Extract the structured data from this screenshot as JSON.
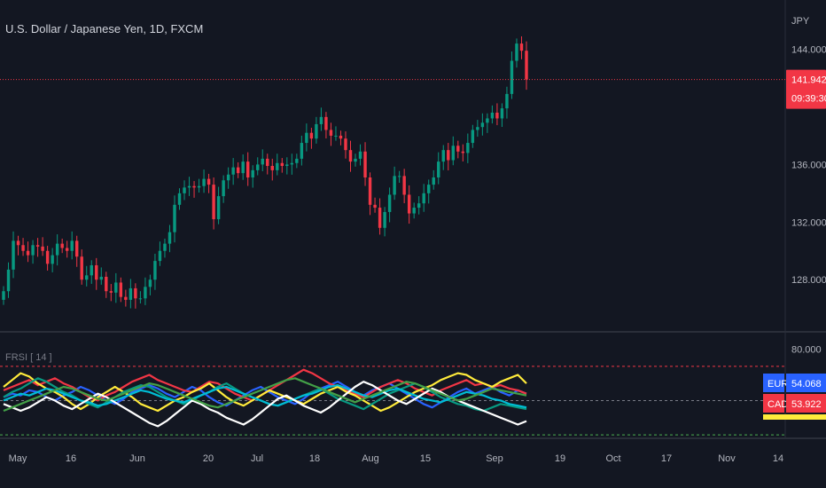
{
  "chart_data": [
    {
      "type": "candlestick",
      "title": "U.S. Dollar / Japanese Yen, 1D, FXCM",
      "y_axis_unit": "JPY",
      "y_ticks": [
        "144.000",
        "136.000",
        "132.000",
        "128.000"
      ],
      "y_tick_values": [
        144,
        136,
        132,
        128
      ],
      "ylim": [
        124.5,
        146.5
      ],
      "last_price": "141.942",
      "countdown": "09:39:30",
      "x_ticks": [
        "May",
        "16",
        "Jun",
        "20",
        "Jul",
        "18",
        "Aug",
        "15",
        "Sep",
        "19",
        "Oct",
        "17",
        "Nov",
        "14"
      ],
      "closes": [
        127.2,
        128.7,
        130.7,
        130.4,
        130.0,
        129.7,
        130.4,
        130.3,
        130.0,
        129.1,
        129.7,
        130.5,
        130.2,
        130.0,
        130.7,
        129.6,
        128.0,
        128.3,
        129.0,
        128.0,
        128.2,
        127.2,
        127.1,
        127.8,
        126.8,
        126.6,
        127.4,
        126.7,
        126.7,
        127.5,
        128.0,
        129.3,
        130.0,
        130.5,
        131.3,
        133.2,
        134.0,
        134.4,
        134.5,
        134.4,
        134.5,
        135.0,
        134.6,
        132.2,
        133.8,
        134.9,
        135.3,
        135.8,
        135.4,
        136.2,
        135.1,
        135.6,
        136.0,
        136.4,
        135.9,
        135.6,
        136.1,
        135.9,
        136.0,
        136.1,
        136.4,
        137.5,
        138.2,
        137.8,
        138.8,
        139.3,
        138.4,
        138.0,
        138.0,
        137.8,
        137.0,
        136.2,
        136.4,
        136.9,
        135.1,
        133.2,
        133.0,
        131.6,
        132.7,
        133.9,
        135.2,
        135.2,
        133.9,
        132.6,
        133.0,
        133.3,
        134.0,
        134.6,
        135.1,
        136.2,
        137.0,
        136.3,
        137.3,
        136.9,
        136.8,
        137.5,
        138.4,
        138.6,
        138.9,
        139.2,
        139.6,
        139.2,
        139.9,
        140.9,
        143.2,
        144.4,
        143.9,
        141.9
      ]
    },
    {
      "type": "line",
      "title": "FRSI [ 14 ]",
      "ylim": [
        29,
        87
      ],
      "y_ticks": [
        "80.000"
      ],
      "y_tick_values": [
        80
      ],
      "ref_lines": [
        {
          "value": 70,
          "color": "#f23645"
        },
        {
          "value": 50,
          "color": "#787b86"
        },
        {
          "value": 30,
          "color": "#4caf50"
        }
      ],
      "series": [
        {
          "name": "EUR",
          "color": "#2962ff",
          "value_label": "54.068",
          "values": [
            52,
            54,
            53,
            56,
            55,
            52,
            50,
            53,
            55,
            58,
            56,
            53,
            50,
            48,
            51,
            55,
            57,
            59,
            57,
            54,
            52,
            55,
            58,
            56,
            52,
            49,
            47,
            50,
            53,
            56,
            58,
            55,
            52,
            50,
            48,
            51,
            55,
            57,
            59,
            61,
            58,
            55,
            53,
            56,
            58,
            60,
            57,
            54,
            51,
            48,
            46,
            49,
            52,
            55,
            57,
            54,
            56,
            58,
            55,
            53,
            56,
            54
          ]
        },
        {
          "name": "CAD",
          "color": "#f23645",
          "value_label": "53.922",
          "values": [
            56,
            58,
            60,
            62,
            59,
            61,
            63,
            60,
            58,
            55,
            52,
            50,
            53,
            55,
            58,
            61,
            63,
            65,
            62,
            60,
            58,
            56,
            55,
            58,
            61,
            60,
            57,
            54,
            52,
            50,
            53,
            56,
            59,
            62,
            65,
            68,
            66,
            63,
            60,
            58,
            56,
            54,
            52,
            55,
            58,
            60,
            62,
            60,
            57,
            55,
            53,
            56,
            58,
            60,
            62,
            59,
            60,
            58,
            59,
            57,
            56,
            54
          ]
        },
        {
          "name": "",
          "color": "#ffeb3b",
          "value_label": "",
          "values": [
            58,
            62,
            66,
            64,
            60,
            57,
            55,
            52,
            48,
            45,
            48,
            52,
            55,
            58,
            55,
            52,
            48,
            46,
            44,
            47,
            50,
            52,
            55,
            57,
            60,
            56,
            52,
            49,
            47,
            50,
            53,
            56,
            54,
            52,
            50,
            48,
            51,
            54,
            56,
            58,
            55,
            53,
            50,
            47,
            44,
            46,
            49,
            52,
            55,
            57,
            59,
            62,
            64,
            66,
            65,
            62,
            60,
            58,
            61,
            63,
            65,
            60
          ]
        },
        {
          "name": "",
          "color": "#089981",
          "value_label": "",
          "values": [
            52,
            55,
            57,
            60,
            63,
            61,
            58,
            55,
            53,
            50,
            48,
            46,
            49,
            52,
            55,
            57,
            59,
            58,
            55,
            52,
            50,
            48,
            50,
            53,
            55,
            58,
            60,
            57,
            54,
            52,
            50,
            48,
            47,
            49,
            51,
            53,
            55,
            57,
            54,
            51,
            49,
            47,
            45,
            48,
            51,
            54,
            56,
            58,
            60,
            58,
            55,
            52,
            50,
            48,
            47,
            45,
            44,
            46,
            48,
            47,
            46,
            45
          ]
        },
        {
          "name": "",
          "color": "#00bcd4",
          "value_label": "",
          "values": [
            50,
            52,
            54,
            53,
            55,
            57,
            56,
            54,
            52,
            50,
            49,
            47,
            48,
            50,
            52,
            54,
            56,
            55,
            53,
            51,
            50,
            49,
            51,
            53,
            55,
            57,
            58,
            56,
            54,
            52,
            50,
            48,
            47,
            49,
            51,
            53,
            54,
            56,
            58,
            59,
            57,
            55,
            53,
            52,
            54,
            56,
            57,
            55,
            53,
            51,
            50,
            49,
            51,
            53,
            55,
            54,
            53,
            51,
            50,
            48,
            47,
            46
          ]
        },
        {
          "name": "",
          "color": "#ffffff",
          "value_label": "",
          "values": [
            48,
            46,
            44,
            46,
            49,
            52,
            50,
            47,
            45,
            48,
            51,
            54,
            52,
            49,
            46,
            43,
            40,
            37,
            35,
            38,
            42,
            46,
            50,
            48,
            45,
            43,
            40,
            38,
            36,
            39,
            43,
            47,
            51,
            53,
            50,
            47,
            45,
            43,
            46,
            50,
            54,
            58,
            61,
            59,
            56,
            53,
            50,
            48,
            51,
            54,
            57,
            55,
            52,
            50,
            48,
            46,
            44,
            42,
            40,
            38,
            36,
            38
          ]
        },
        {
          "name": "",
          "color": "#43a047",
          "value_label": "",
          "values": [
            44,
            46,
            48,
            50,
            52,
            54,
            56,
            58,
            57,
            55,
            53,
            51,
            50,
            52,
            54,
            56,
            58,
            60,
            59,
            57,
            55,
            53,
            51,
            49,
            47,
            46,
            48,
            50,
            52,
            54,
            56,
            58,
            60,
            62,
            63,
            61,
            59,
            57,
            55,
            53,
            51,
            49,
            51,
            53,
            55,
            57,
            59,
            61,
            60,
            58,
            56,
            54,
            52,
            50,
            51,
            53,
            55,
            57,
            56,
            55,
            54,
            53
          ]
        }
      ]
    }
  ]
}
